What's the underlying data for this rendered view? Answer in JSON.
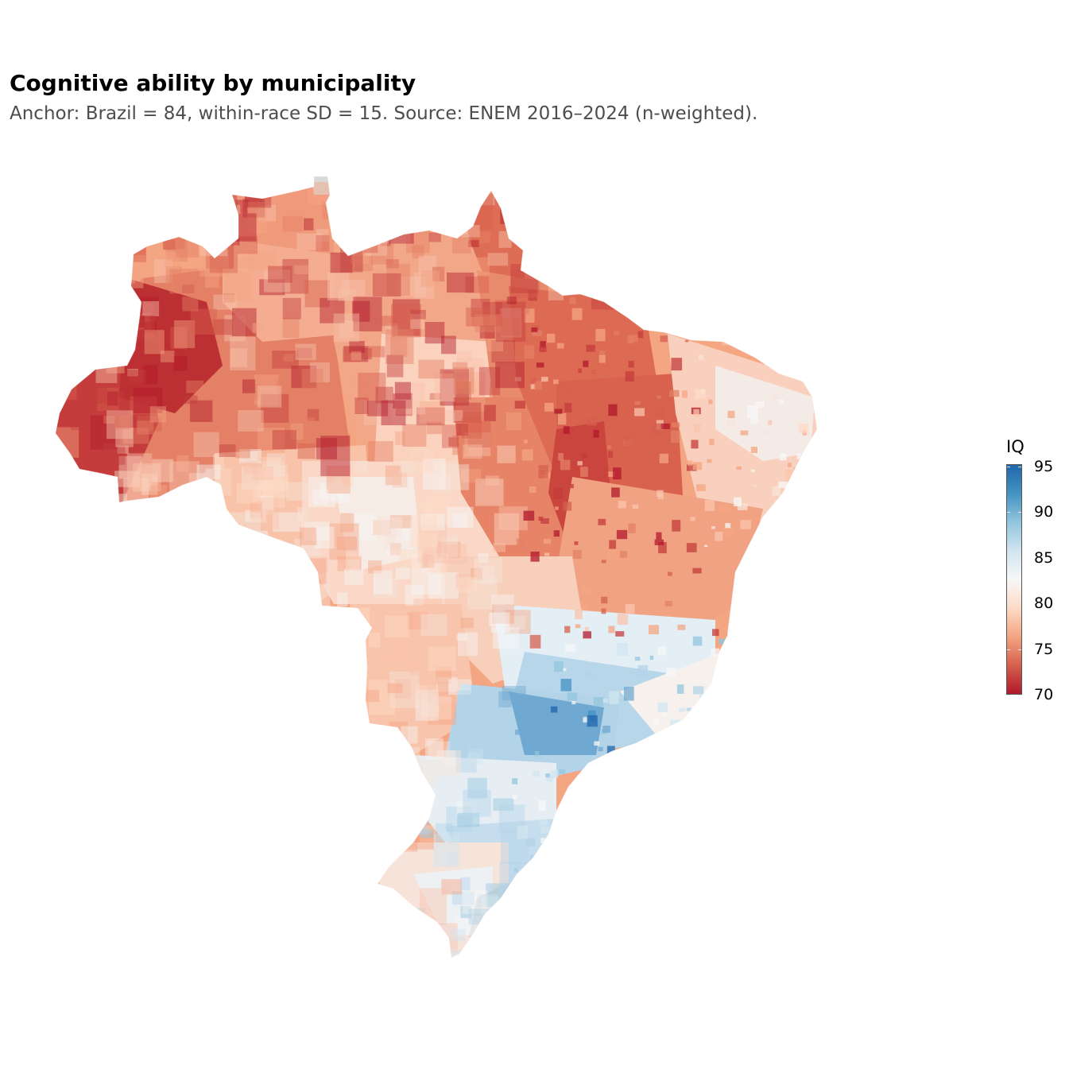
{
  "title": "Cognitive ability by municipality",
  "subtitle": "Anchor: Brazil = 84, within-race SD = 15. Source: ENEM 2016–2024 (n-weighted).",
  "legend": {
    "title": "IQ",
    "ticks": [
      "95",
      "90",
      "85",
      "80",
      "75",
      "70"
    ],
    "min": 70,
    "max": 95,
    "colors": [
      "#b2182b",
      "#d6604d",
      "#f4a582",
      "#fddbc7",
      "#f7f7f7",
      "#d1e5f0",
      "#92c5de",
      "#4393c3",
      "#2166ac"
    ]
  },
  "map": {
    "region": "Brazil",
    "missing_color": "#d9d9d9",
    "regional_values": [
      {
        "region": "far-west Amazonas / Acre",
        "iq": 71
      },
      {
        "region": "Amazonas",
        "iq": 74
      },
      {
        "region": "Roraima",
        "iq": 76
      },
      {
        "region": "Pará",
        "iq": 77
      },
      {
        "region": "Amapá",
        "iq": 74
      },
      {
        "region": "Rondônia",
        "iq": 79
      },
      {
        "region": "Mato Grosso",
        "iq": 80
      },
      {
        "region": "Tocantins",
        "iq": 77
      },
      {
        "region": "Maranhão / Piauí",
        "iq": 74
      },
      {
        "region": "Northeast coast",
        "iq": 80
      },
      {
        "region": "Bahia",
        "iq": 77
      },
      {
        "region": "Goiás",
        "iq": 80
      },
      {
        "region": "Mato Grosso do Sul",
        "iq": 79
      },
      {
        "region": "Minas Gerais",
        "iq": 85
      },
      {
        "region": "São Paulo",
        "iq": 88
      },
      {
        "region": "Rio de Janeiro / Espírito Santo",
        "iq": 84
      },
      {
        "region": "Paraná",
        "iq": 85
      },
      {
        "region": "Santa Catarina",
        "iq": 87
      },
      {
        "region": "Rio Grande do Sul",
        "iq": 82
      }
    ]
  }
}
